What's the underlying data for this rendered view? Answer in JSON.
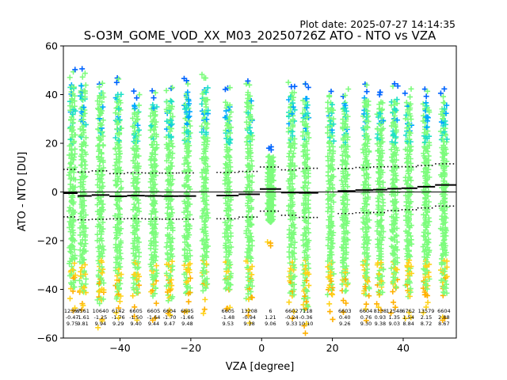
{
  "chart_data": {
    "type": "scatter",
    "plot_date": "Plot date: 2025-07-27 14:14:35",
    "title": "S-O3M_GOME_VOD_XX_M03_20250726Z ATO - NTO vs VZA",
    "xlabel": "VZA [degree]",
    "ylabel": "ATO - NTO [DU]",
    "xlim": [
      -56,
      55
    ],
    "ylim": [
      -60,
      60
    ],
    "xticks": [
      -40,
      -20,
      0,
      20,
      40
    ],
    "yticks": [
      -60,
      -40,
      -20,
      0,
      20,
      40,
      60
    ],
    "grid": false,
    "reference_line_y": 0,
    "bins": [
      {
        "x": -53.5,
        "count": "12367",
        "mean": "-0.47",
        "std": "9.75",
        "lo": -40,
        "hi": 44
      },
      {
        "x": -50.5,
        "count": "6561",
        "mean": "-1.61",
        "std": "9.81",
        "lo": -42,
        "hi": 44
      },
      {
        "x": -45.5,
        "count": "10640",
        "mean": "-1.25",
        "std": "9.94",
        "lo": -45,
        "hi": 40
      },
      {
        "x": -40.5,
        "count": "6142",
        "mean": "-1.76",
        "std": "9.29",
        "lo": -44,
        "hi": 40
      },
      {
        "x": -35.5,
        "count": "6605",
        "mean": "-1.50",
        "std": "9.40",
        "lo": -42,
        "hi": 35
      },
      {
        "x": -30.5,
        "count": "6605",
        "mean": "-1.64",
        "std": "9.44",
        "lo": -42,
        "hi": 35
      },
      {
        "x": -26.0,
        "count": "6604",
        "mean": "-1.70",
        "std": "9.47",
        "lo": -44,
        "hi": 38
      },
      {
        "x": -21.0,
        "count": "6605",
        "mean": "-1.66",
        "std": "9.48",
        "lo": -42,
        "hi": 40
      },
      {
        "x": -16.0,
        "count": "",
        "mean": "",
        "std": "",
        "lo": -40,
        "hi": 42
      },
      {
        "x": -9.5,
        "count": "6605",
        "mean": "-1.48",
        "std": "9.53",
        "lo": -40,
        "hi": 36
      },
      {
        "x": -3.5,
        "count": "13208",
        "mean": "-0.94",
        "std": "9.38",
        "lo": -44,
        "hi": 40
      },
      {
        "x": 2.5,
        "count": "6",
        "mean": "1.21",
        "std": "9.06",
        "lo": -12,
        "hi": 14
      },
      {
        "x": 8.5,
        "count": "6602",
        "mean": "-0.24",
        "std": "9.33",
        "lo": -42,
        "hi": 40
      },
      {
        "x": 12.5,
        "count": "7118",
        "mean": "-0.36",
        "std": "10.10",
        "lo": -48,
        "hi": 38
      },
      {
        "x": 19.5,
        "count": "",
        "mean": "",
        "std": "",
        "lo": -42,
        "hi": 36
      },
      {
        "x": 23.5,
        "count": "6603",
        "mean": "0.40",
        "std": "9.26",
        "lo": -40,
        "hi": 36
      },
      {
        "x": 29.5,
        "count": "6604",
        "mean": "0.76",
        "std": "9.30",
        "lo": -42,
        "hi": 38
      },
      {
        "x": 33.5,
        "count": "8138",
        "mean": "0.93",
        "std": "9.38",
        "lo": -42,
        "hi": 36
      },
      {
        "x": 37.5,
        "count": "12548",
        "mean": "1.35",
        "std": "9.03",
        "lo": -40,
        "hi": 38
      },
      {
        "x": 41.5,
        "count": "6762",
        "mean": "1.54",
        "std": "8.84",
        "lo": -42,
        "hi": 36
      },
      {
        "x": 46.5,
        "count": "13579",
        "mean": "2.15",
        "std": "8.72",
        "lo": -42,
        "hi": 36
      },
      {
        "x": 51.5,
        "count": "6604",
        "mean": "2.88",
        "std": "8.67",
        "lo": -42,
        "hi": 36
      }
    ],
    "colors": {
      "scatter_main": "#7dfc7d",
      "scatter_mid": "#1fe0c8",
      "scatter_blue": "#00a8ff",
      "scatter_dark": "#0064ff",
      "scatter_yellow": "#ffd21a",
      "scatter_orange": "#ffb000",
      "line": "#000000"
    }
  }
}
